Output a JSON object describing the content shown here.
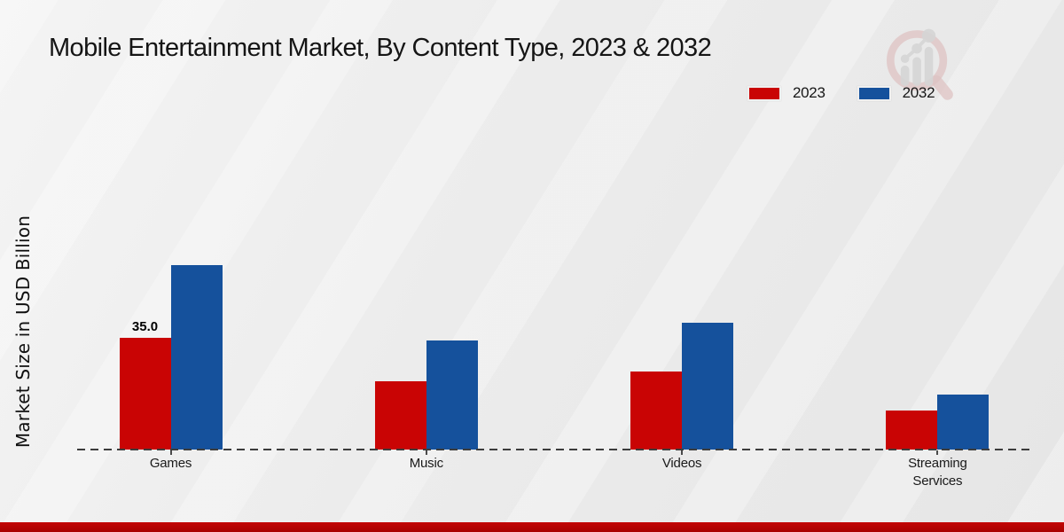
{
  "title": "Mobile Entertainment Market, By Content Type, 2023 & 2032",
  "ylabel": "Market Size in USD Billion",
  "legend": [
    {
      "label": "2023",
      "color": "#c90404"
    },
    {
      "label": "2032",
      "color": "#15519c"
    }
  ],
  "logo_name": "market-research-magnifier-logo",
  "colors": {
    "series_2023": "#c90404",
    "series_2032": "#15519c",
    "baseline": "#3c3c3c",
    "footer_accent": "#b80404",
    "background": "#ececec"
  },
  "chart_data": {
    "type": "bar",
    "title": "Mobile Entertainment Market, By Content Type, 2023 & 2032",
    "categories": [
      "Games",
      "Music",
      "Videos",
      "Streaming Services"
    ],
    "series": [
      {
        "name": "2023",
        "color": "#c90404",
        "values": [
          35.0,
          21.4,
          24.4,
          12.2
        ]
      },
      {
        "name": "2032",
        "color": "#15519c",
        "values": [
          57.8,
          34.2,
          39.7,
          17.2
        ]
      }
    ],
    "data_labels": [
      {
        "series_index": 0,
        "category_index": 0,
        "text": "35.0"
      }
    ],
    "xlabel": "",
    "ylabel": "Market Size in USD Billion",
    "ylim": [
      0,
      65
    ],
    "grid": false,
    "y_axis_ticks_visible": false,
    "legend_position": "top-right"
  }
}
